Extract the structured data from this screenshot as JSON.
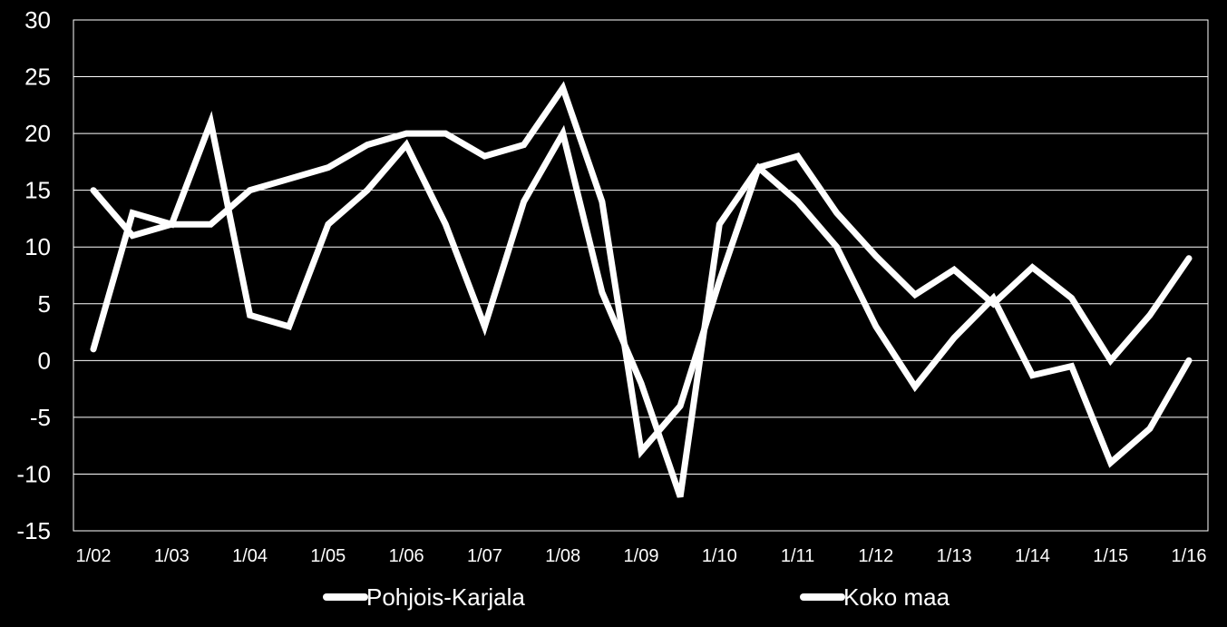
{
  "chart_data": {
    "type": "line",
    "x": [
      "1/02",
      "7/02",
      "1/03",
      "7/03",
      "1/04",
      "7/04",
      "1/05",
      "7/05",
      "1/06",
      "7/06",
      "1/07",
      "7/07",
      "1/08",
      "7/08",
      "1/09",
      "7/09",
      "1/10",
      "7/10",
      "1/11",
      "7/11",
      "1/12",
      "7/12",
      "1/13",
      "7/13",
      "1/14",
      "7/14",
      "1/15",
      "7/15",
      "1/16"
    ],
    "x_tick_labels": [
      "1/02",
      "1/03",
      "1/04",
      "1/05",
      "1/06",
      "1/07",
      "1/08",
      "1/09",
      "1/10",
      "1/11",
      "1/12",
      "1/13",
      "1/14",
      "1/15",
      "1/16"
    ],
    "series": [
      {
        "name": "Pohjois-Karjala",
        "values": [
          1,
          13,
          12,
          21,
          4,
          3,
          12,
          15,
          19,
          12,
          3,
          14,
          20,
          6,
          -2,
          -12,
          12,
          17,
          14,
          10,
          3,
          -2.3,
          2,
          5.5,
          -1.3,
          -0.5,
          -9,
          -6,
          0
        ],
        "color": "#ffffff"
      },
      {
        "name": "Koko maa",
        "values": [
          15,
          11,
          12,
          12,
          15,
          16,
          17,
          19,
          20,
          20,
          18,
          19,
          24,
          14,
          -8,
          -4,
          7,
          17,
          18,
          13,
          9.2,
          5.8,
          8,
          5,
          8.2,
          5.5,
          0,
          4,
          9
        ],
        "color": "#ffffff"
      }
    ],
    "y_ticks": [
      30,
      25,
      20,
      15,
      10,
      5,
      0,
      -5,
      -10,
      -15
    ],
    "ylim": [
      -15,
      30
    ],
    "grid": true,
    "legend_position": "bottom",
    "title": "",
    "xlabel": "",
    "ylabel": ""
  }
}
